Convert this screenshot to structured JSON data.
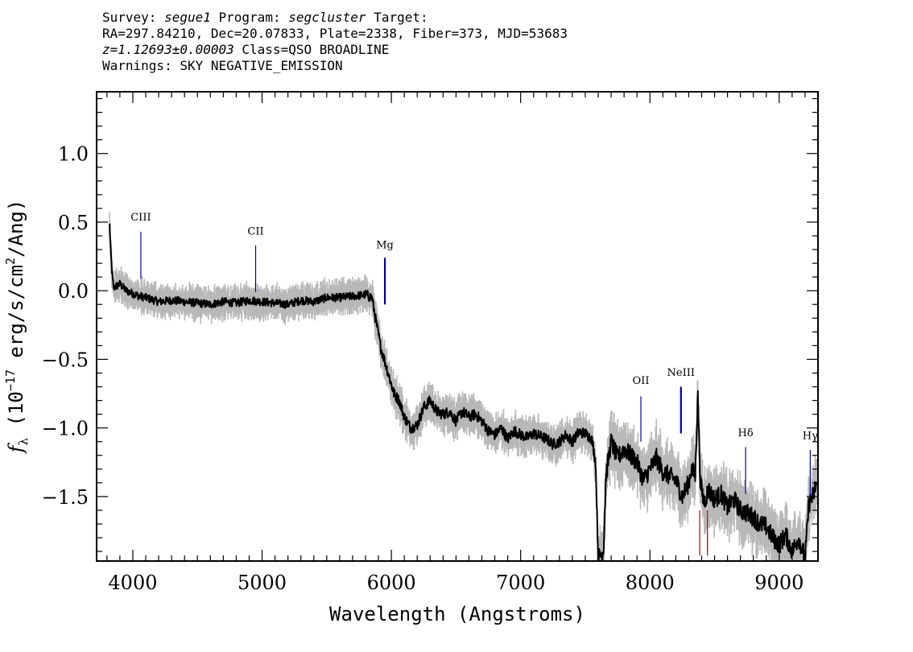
{
  "header": {
    "line1": {
      "survey_label": "Survey:",
      "survey": "segue1",
      "program_label": "Program:",
      "program": "segcluster",
      "target_label": "Target:"
    },
    "line2": "RA=297.84210, Dec=20.07833, Plate=2338, Fiber=373, MJD=53683",
    "line3": {
      "z": "z=1.12693±0.00003",
      "class": "Class=QSO BROADLINE"
    },
    "line4": "Warnings: SKY NEGATIVE_EMISSION"
  },
  "chart_data": {
    "type": "line",
    "xlabel": "Wavelength (Angstroms)",
    "ylabel": "f_λ (10^-17 erg/s/cm²/Ang)",
    "ylabel_parts": {
      "f": "f",
      "sub": "λ",
      "pre": " (10",
      "exp1": "−17",
      "mid": " erg/s/cm",
      "exp2": "2",
      "post": "/Ang)"
    },
    "xlim": [
      3720,
      9300
    ],
    "ylim": [
      -1.97,
      1.45
    ],
    "x_ticks": [
      4000,
      5000,
      6000,
      7000,
      8000,
      9000
    ],
    "x_tick_labels": [
      "4000",
      "5000",
      "6000",
      "7000",
      "8000",
      "9000"
    ],
    "y_ticks": [
      1.0,
      0.5,
      0.0,
      -0.5,
      -1.0,
      -1.5
    ],
    "y_tick_labels": [
      "1.0",
      "0.5",
      "0.0",
      "−0.5",
      "−1.0",
      "−1.5"
    ],
    "colors": {
      "flux": "#000000",
      "error": "#b8b8b8",
      "emission_line": "#0000aa",
      "absorption_line": "#aa0000"
    },
    "spectrum_knots": [
      [
        3820,
        0.48
      ],
      [
        3835,
        0.18
      ],
      [
        3850,
        0.02
      ],
      [
        3900,
        0.05
      ],
      [
        3950,
        0.0
      ],
      [
        4000,
        -0.02
      ],
      [
        4050,
        -0.04
      ],
      [
        4100,
        -0.05
      ],
      [
        4200,
        -0.08
      ],
      [
        4300,
        -0.07
      ],
      [
        4400,
        -0.08
      ],
      [
        4500,
        -0.09
      ],
      [
        4600,
        -0.1
      ],
      [
        4700,
        -0.08
      ],
      [
        4800,
        -0.09
      ],
      [
        4900,
        -0.07
      ],
      [
        5000,
        -0.08
      ],
      [
        5100,
        -0.09
      ],
      [
        5200,
        -0.1
      ],
      [
        5300,
        -0.07
      ],
      [
        5400,
        -0.08
      ],
      [
        5500,
        -0.05
      ],
      [
        5600,
        -0.05
      ],
      [
        5700,
        -0.04
      ],
      [
        5800,
        -0.03
      ],
      [
        5850,
        -0.05
      ],
      [
        5880,
        -0.22
      ],
      [
        5920,
        -0.42
      ],
      [
        5960,
        -0.55
      ],
      [
        5990,
        -0.65
      ],
      [
        6020,
        -0.75
      ],
      [
        6060,
        -0.8
      ],
      [
        6100,
        -0.92
      ],
      [
        6150,
        -1.0
      ],
      [
        6200,
        -0.98
      ],
      [
        6250,
        -0.85
      ],
      [
        6300,
        -0.8
      ],
      [
        6350,
        -0.88
      ],
      [
        6400,
        -0.9
      ],
      [
        6450,
        -0.88
      ],
      [
        6500,
        -0.95
      ],
      [
        6550,
        -0.88
      ],
      [
        6600,
        -0.92
      ],
      [
        6650,
        -0.9
      ],
      [
        6700,
        -0.95
      ],
      [
        6750,
        -1.02
      ],
      [
        6800,
        -1.05
      ],
      [
        6850,
        -1.0
      ],
      [
        6900,
        -1.08
      ],
      [
        6950,
        -1.02
      ],
      [
        7000,
        -1.05
      ],
      [
        7050,
        -1.07
      ],
      [
        7100,
        -1.04
      ],
      [
        7150,
        -1.06
      ],
      [
        7200,
        -1.08
      ],
      [
        7250,
        -1.12
      ],
      [
        7300,
        -1.1
      ],
      [
        7350,
        -1.05
      ],
      [
        7400,
        -1.1
      ],
      [
        7450,
        -1.03
      ],
      [
        7500,
        -1.04
      ],
      [
        7550,
        -1.08
      ],
      [
        7580,
        -1.25
      ],
      [
        7600,
        -1.95
      ],
      [
        7640,
        -1.9
      ],
      [
        7660,
        -1.35
      ],
      [
        7700,
        -1.1
      ],
      [
        7750,
        -1.22
      ],
      [
        7800,
        -1.15
      ],
      [
        7850,
        -1.2
      ],
      [
        7900,
        -1.25
      ],
      [
        7950,
        -1.38
      ],
      [
        8000,
        -1.3
      ],
      [
        8050,
        -1.22
      ],
      [
        8100,
        -1.32
      ],
      [
        8150,
        -1.35
      ],
      [
        8200,
        -1.38
      ],
      [
        8250,
        -1.5
      ],
      [
        8300,
        -1.4
      ],
      [
        8320,
        -1.3
      ],
      [
        8350,
        -1.35
      ],
      [
        8370,
        -0.75
      ],
      [
        8390,
        -1.4
      ],
      [
        8420,
        -1.55
      ],
      [
        8450,
        -1.45
      ],
      [
        8500,
        -1.52
      ],
      [
        8550,
        -1.48
      ],
      [
        8600,
        -1.58
      ],
      [
        8650,
        -1.52
      ],
      [
        8700,
        -1.6
      ],
      [
        8750,
        -1.62
      ],
      [
        8800,
        -1.65
      ],
      [
        8850,
        -1.7
      ],
      [
        8900,
        -1.72
      ],
      [
        8950,
        -1.8
      ],
      [
        9000,
        -1.85
      ],
      [
        9050,
        -1.78
      ],
      [
        9100,
        -1.9
      ],
      [
        9150,
        -1.8
      ],
      [
        9200,
        -1.95
      ],
      [
        9230,
        -1.55
      ],
      [
        9260,
        -1.5
      ],
      [
        9290,
        -1.4
      ]
    ],
    "emission_lines": [
      {
        "label": "CIII",
        "x": 4062,
        "y_top": 0.43,
        "y_bottom": 0.09,
        "label_y": 0.51
      },
      {
        "label": "CII",
        "x": 4950,
        "y_top": 0.33,
        "y_bottom": -0.01,
        "label_y": 0.41
      },
      {
        "label": "Mg",
        "x": 5950,
        "y_top": 0.24,
        "y_bottom": -0.1,
        "label_y": 0.31,
        "thick": true
      },
      {
        "label": "OII",
        "x": 7930,
        "y_top": -0.77,
        "y_bottom": -1.1,
        "label_y": -0.68
      },
      {
        "label": "NeIII",
        "x": 8240,
        "y_top": -0.7,
        "y_bottom": -1.04,
        "label_y": -0.62,
        "thick": true
      },
      {
        "label": "Hδ",
        "x": 8740,
        "y_top": -1.14,
        "y_bottom": -1.48,
        "label_y": -1.06
      },
      {
        "label": "Hγ",
        "x": 9240,
        "y_top": -1.16,
        "y_bottom": -1.5,
        "label_y": -1.08
      }
    ],
    "absorption_lines": [
      {
        "x": 8385,
        "y_top": -1.6,
        "y_bottom": -1.93
      },
      {
        "x": 8445,
        "y_top": -1.6,
        "y_bottom": -1.93
      }
    ]
  }
}
